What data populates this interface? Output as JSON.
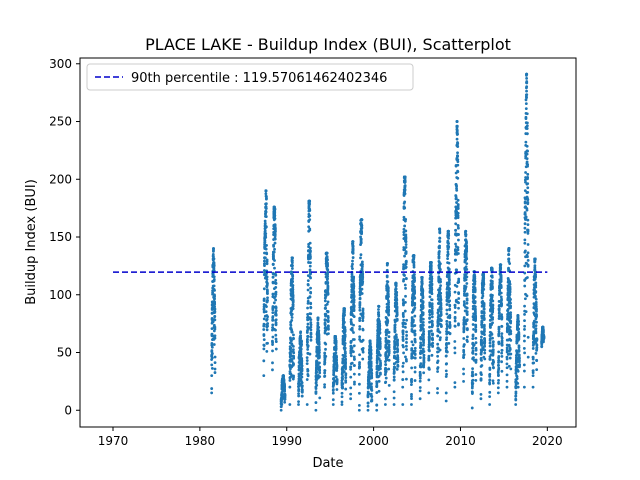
{
  "chart_data": {
    "type": "scatter",
    "title": "PLACE LAKE - Buildup Index (BUI), Scatterplot",
    "xlabel": "Date",
    "ylabel": "Buildup Index (BUI)",
    "xlim": [
      1966.2,
      2023.3
    ],
    "ylim": [
      -14.5,
      305
    ],
    "xticks": [
      1970,
      1980,
      1990,
      2000,
      2010,
      2020
    ],
    "yticks": [
      0,
      50,
      100,
      150,
      200,
      250,
      300
    ],
    "xtick_labels": [
      "1970",
      "1980",
      "1990",
      "2000",
      "2010",
      "2020"
    ],
    "ytick_labels": [
      "0",
      "50",
      "100",
      "150",
      "200",
      "250",
      "300"
    ],
    "grid": false,
    "legend_position": "upper-left",
    "point_color": "#1f77b4",
    "reference_line": {
      "label": "90th percentile : 119.57061462402346",
      "value": 119.57061462402346,
      "x_range": [
        1970,
        2020
      ],
      "color": "#0000cc",
      "style": "dashed"
    },
    "seasons": [
      {
        "year": 1981.3,
        "start": 1981.35,
        "end": 1981.75,
        "min": 15,
        "max": 140
      },
      {
        "year": 1987,
        "start": 1987.35,
        "end": 1987.8,
        "min": 30,
        "max": 190
      },
      {
        "year": 1988,
        "start": 1988.35,
        "end": 1988.8,
        "min": 35,
        "max": 176
      },
      {
        "year": 1989,
        "start": 1989.35,
        "end": 1989.8,
        "min": 0,
        "max": 30
      },
      {
        "year": 1990,
        "start": 1990.35,
        "end": 1990.8,
        "min": 5,
        "max": 132
      },
      {
        "year": 1991,
        "start": 1991.35,
        "end": 1991.8,
        "min": 5,
        "max": 68
      },
      {
        "year": 1992,
        "start": 1992.35,
        "end": 1992.8,
        "min": 5,
        "max": 181
      },
      {
        "year": 1993,
        "start": 1993.35,
        "end": 1993.8,
        "min": 0,
        "max": 80
      },
      {
        "year": 1994,
        "start": 1994.35,
        "end": 1994.8,
        "min": 20,
        "max": 136
      },
      {
        "year": 1995,
        "start": 1995.35,
        "end": 1995.8,
        "min": 5,
        "max": 64
      },
      {
        "year": 1996,
        "start": 1996.35,
        "end": 1996.8,
        "min": 5,
        "max": 88
      },
      {
        "year": 1997,
        "start": 1997.35,
        "end": 1997.8,
        "min": 10,
        "max": 146
      },
      {
        "year": 1998,
        "start": 1998.35,
        "end": 1998.8,
        "min": 0,
        "max": 165
      },
      {
        "year": 1999,
        "start": 1999.35,
        "end": 1999.8,
        "min": 0,
        "max": 60
      },
      {
        "year": 2000,
        "start": 2000.35,
        "end": 2000.8,
        "min": 0,
        "max": 90
      },
      {
        "year": 2001,
        "start": 2001.35,
        "end": 2001.8,
        "min": 5,
        "max": 127
      },
      {
        "year": 2002,
        "start": 2002.35,
        "end": 2002.8,
        "min": 5,
        "max": 110
      },
      {
        "year": 2003,
        "start": 2003.35,
        "end": 2003.8,
        "min": 5,
        "max": 202
      },
      {
        "year": 2004,
        "start": 2004.35,
        "end": 2004.8,
        "min": 5,
        "max": 134
      },
      {
        "year": 2005,
        "start": 2005.35,
        "end": 2005.8,
        "min": 10,
        "max": 115
      },
      {
        "year": 2006,
        "start": 2006.35,
        "end": 2006.8,
        "min": 15,
        "max": 128
      },
      {
        "year": 2007,
        "start": 2007.35,
        "end": 2007.8,
        "min": 15,
        "max": 157
      },
      {
        "year": 2008,
        "start": 2008.35,
        "end": 2008.8,
        "min": 8,
        "max": 155
      },
      {
        "year": 2009,
        "start": 2009.35,
        "end": 2009.8,
        "min": 20,
        "max": 250
      },
      {
        "year": 2010,
        "start": 2010.35,
        "end": 2010.8,
        "min": 25,
        "max": 155
      },
      {
        "year": 2011,
        "start": 2011.35,
        "end": 2011.8,
        "min": 2,
        "max": 120
      },
      {
        "year": 2012,
        "start": 2012.35,
        "end": 2012.8,
        "min": 10,
        "max": 118
      },
      {
        "year": 2013,
        "start": 2013.35,
        "end": 2013.8,
        "min": 5,
        "max": 123
      },
      {
        "year": 2014,
        "start": 2014.35,
        "end": 2014.8,
        "min": 15,
        "max": 126
      },
      {
        "year": 2015,
        "start": 2015.35,
        "end": 2015.8,
        "min": 20,
        "max": 140
      },
      {
        "year": 2016,
        "start": 2016.35,
        "end": 2016.8,
        "min": 5,
        "max": 82
      },
      {
        "year": 2017,
        "start": 2017.35,
        "end": 2017.8,
        "min": 20,
        "max": 291
      },
      {
        "year": 2018,
        "start": 2018.35,
        "end": 2018.8,
        "min": 20,
        "max": 131
      },
      {
        "year": 2019,
        "start": 2019.35,
        "end": 2019.6,
        "min": 55,
        "max": 72
      }
    ]
  }
}
